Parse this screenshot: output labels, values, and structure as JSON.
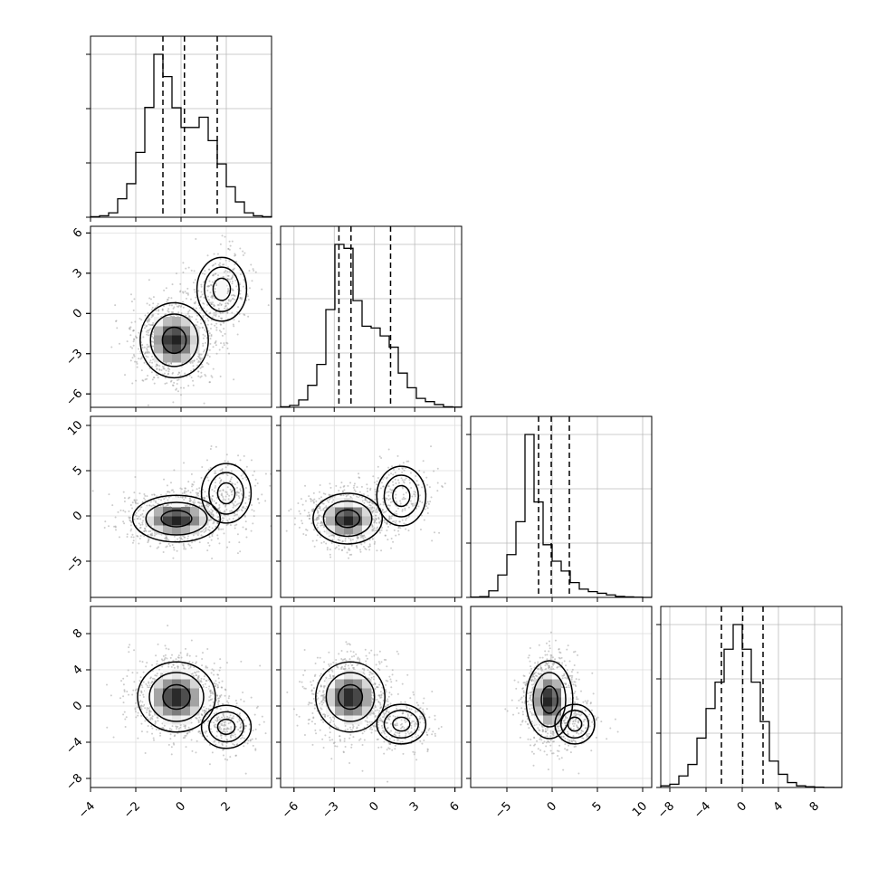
{
  "chart_data": {
    "type": "corner",
    "title": "",
    "n_params": 4,
    "params": [
      {
        "label": "",
        "range": [
          -4,
          4
        ],
        "ticks": [
          -4,
          -2,
          0,
          2
        ],
        "tick_labels": [
          "−4",
          "−2",
          "0",
          "2"
        ],
        "quantiles": [
          -0.8,
          0.15,
          1.6
        ],
        "hist": [
          0.3,
          0.9,
          2.7,
          11.3,
          20.6,
          39.8,
          67.4,
          100.0,
          86.3,
          67.2,
          55.1,
          55.1,
          61.4,
          47.0,
          32.7,
          18.7,
          9.4,
          2.7,
          0.9,
          0.3
        ]
      },
      {
        "label": "",
        "range": [
          -7,
          6.5
        ],
        "ticks": [
          -6,
          -3,
          0,
          3,
          6
        ],
        "tick_labels": [
          "−6",
          "−3",
          "0",
          "3",
          "6"
        ],
        "quantiles": [
          -2.65,
          -1.75,
          1.2
        ],
        "hist": [
          0.3,
          1.2,
          4.5,
          13.5,
          26.3,
          60.0,
          100.0,
          97.6,
          65.5,
          49.8,
          48.7,
          43.8,
          36.9,
          21.0,
          12.0,
          5.5,
          3.5,
          1.7,
          0.3,
          0.1
        ]
      },
      {
        "label": "",
        "range": [
          -9,
          11
        ],
        "ticks": [
          -5,
          0,
          5,
          10
        ],
        "tick_labels": [
          "−5",
          "0",
          "5",
          "10"
        ],
        "quantiles": [
          -1.5,
          -0.1,
          1.9
        ],
        "hist": [
          0.2,
          0.5,
          4.0,
          13.6,
          26.0,
          46.0,
          99.0,
          58.0,
          32.0,
          22.0,
          16.0,
          9.0,
          5.0,
          3.5,
          2.5,
          1.5,
          0.6,
          0.3,
          0.1,
          0.0
        ]
      },
      {
        "label": "",
        "range": [
          -9,
          11
        ],
        "ticks": [
          -8,
          -4,
          0,
          4,
          8
        ],
        "tick_labels": [
          "−8",
          "−4",
          "0",
          "4",
          "8"
        ],
        "quantiles": [
          -2.3,
          0.05,
          2.3
        ],
        "hist": [
          1.0,
          2.0,
          7.0,
          14.0,
          30.0,
          48.0,
          64.0,
          84.0,
          99.0,
          84.0,
          64.0,
          40.0,
          16.0,
          8.0,
          3.0,
          1.0,
          0.5,
          0.2,
          0.0,
          0.0
        ]
      }
    ],
    "pairs": [
      {
        "row": 1,
        "col": 0,
        "modes": [
          {
            "mx": -0.3,
            "my": -2.0,
            "sx": 0.7,
            "sy": 1.3,
            "w": 0.75
          },
          {
            "mx": 1.8,
            "my": 1.8,
            "sx": 0.6,
            "sy": 1.3,
            "w": 0.25
          }
        ]
      },
      {
        "row": 2,
        "col": 0,
        "modes": [
          {
            "mx": -0.2,
            "my": -0.3,
            "sx": 0.9,
            "sy": 1.2,
            "w": 0.8
          },
          {
            "mx": 2.0,
            "my": 2.5,
            "sx": 0.6,
            "sy": 1.8,
            "w": 0.2
          }
        ]
      },
      {
        "row": 2,
        "col": 1,
        "modes": [
          {
            "mx": -2.0,
            "my": -0.3,
            "sx": 1.2,
            "sy": 1.3,
            "w": 0.8
          },
          {
            "mx": 2.0,
            "my": 2.2,
            "sx": 1.0,
            "sy": 1.8,
            "w": 0.2
          }
        ]
      },
      {
        "row": 3,
        "col": 0,
        "modes": [
          {
            "mx": -0.2,
            "my": 1.0,
            "sx": 0.8,
            "sy": 1.8,
            "w": 0.8
          },
          {
            "mx": 2.0,
            "my": -2.3,
            "sx": 0.6,
            "sy": 1.3,
            "w": 0.2
          }
        ]
      },
      {
        "row": 3,
        "col": 1,
        "modes": [
          {
            "mx": -1.8,
            "my": 1.0,
            "sx": 1.2,
            "sy": 1.8,
            "w": 0.8
          },
          {
            "mx": 2.0,
            "my": -2.0,
            "sx": 1.0,
            "sy": 1.2,
            "w": 0.2
          }
        ]
      },
      {
        "row": 3,
        "col": 2,
        "modes": [
          {
            "mx": -0.3,
            "my": 0.7,
            "sx": 1.2,
            "sy": 2.0,
            "w": 0.85
          },
          {
            "mx": 2.5,
            "my": -2.0,
            "sx": 1.2,
            "sy": 1.2,
            "w": 0.15
          }
        ]
      }
    ]
  }
}
